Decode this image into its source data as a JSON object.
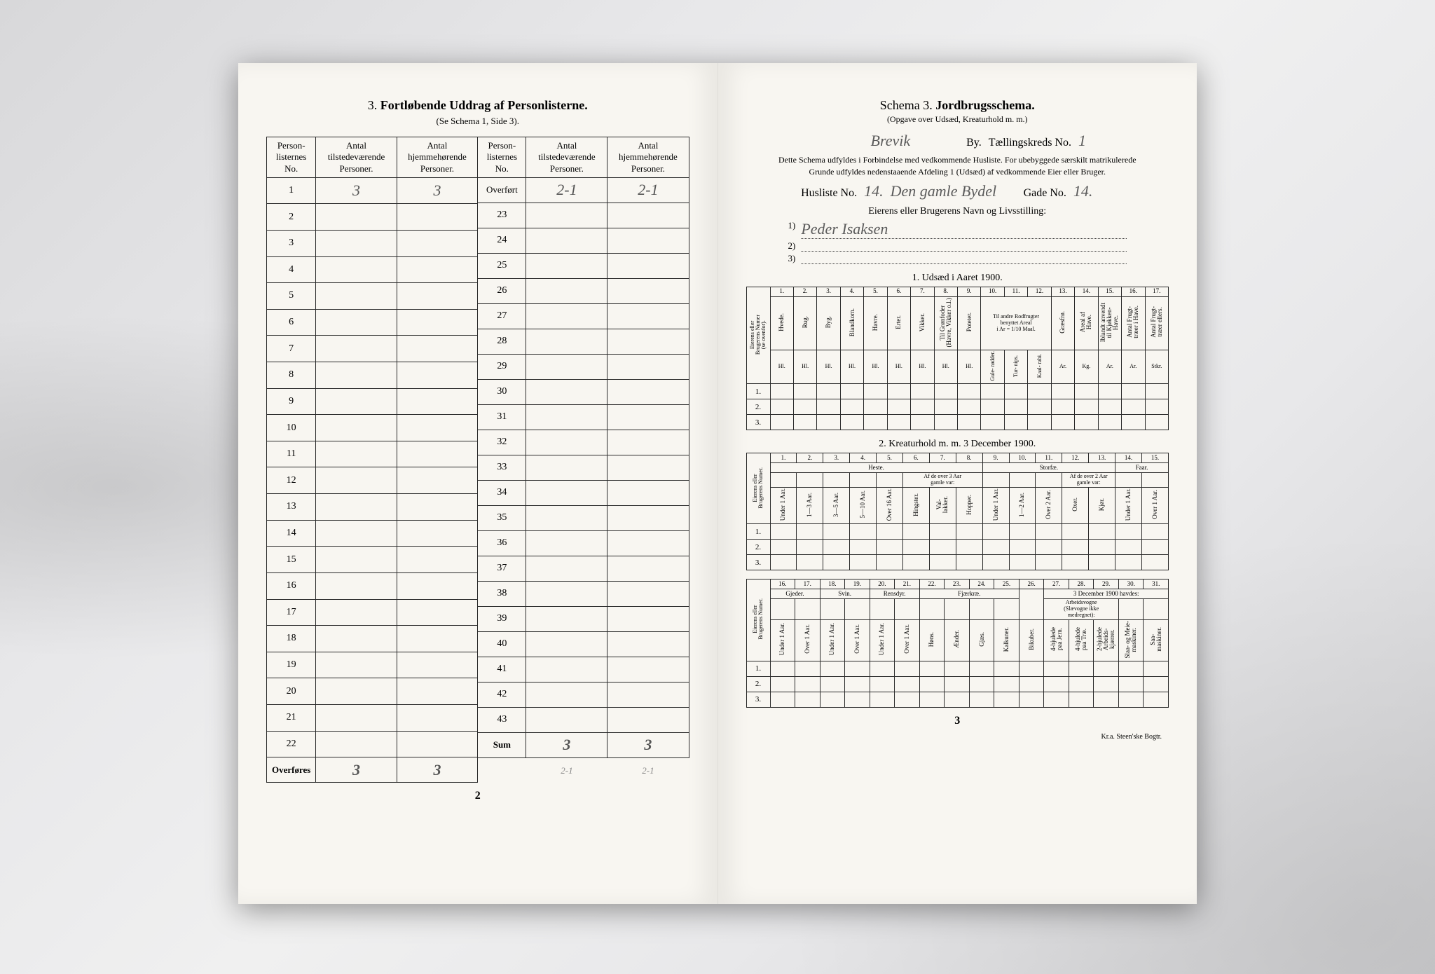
{
  "colors": {
    "paper": "#f8f6f1",
    "ink": "#2a2a2a",
    "handwriting": "#5b5b5b",
    "background_dark": "#d0d0d2",
    "background_light": "#f0f0f0"
  },
  "left": {
    "title_num": "3.",
    "title": "Fortløbende Uddrag af Personlisterne.",
    "subtitle": "(Se Schema 1, Side 3).",
    "headers": {
      "no": "Person-\nlisternes\nNo.",
      "present": "Antal\ntilstedeværende\nPersoner.",
      "resident": "Antal\nhjemmehørende\nPersoner."
    },
    "tableA_rows": [
      1,
      2,
      3,
      4,
      5,
      6,
      7,
      8,
      9,
      10,
      11,
      12,
      13,
      14,
      15,
      16,
      17,
      18,
      19,
      20,
      21,
      22
    ],
    "tableA_vals": {
      "1": {
        "present": "3",
        "resident": "3"
      }
    },
    "tableA_sum_label": "Overføres",
    "tableA_sum": {
      "present": "3",
      "resident": "3"
    },
    "tableB_top_label": "Overført",
    "tableB_top": {
      "present": "2-1",
      "resident": "2-1"
    },
    "tableB_rows": [
      23,
      24,
      25,
      26,
      27,
      28,
      29,
      30,
      31,
      32,
      33,
      34,
      35,
      36,
      37,
      38,
      39,
      40,
      41,
      42,
      43
    ],
    "tableB_sum_label": "Sum",
    "tableB_sum": {
      "present": "3",
      "resident": "3"
    },
    "tableB_below": {
      "present": "2-1",
      "resident": "2-1"
    },
    "page_num": "2"
  },
  "right": {
    "title_pre": "Schema 3.",
    "title": "Jordbrugsschema.",
    "subtitle": "(Opgave over Udsæd, Kreaturhold m. m.)",
    "town_hand": "Brevik",
    "town_label": "By.",
    "district_label": "Tællingskreds No.",
    "district_no": "1",
    "intro": "Dette Schema udfyldes i Forbindelse med vedkommende Husliste. For ubebyggede særskilt matrikulerede Grunde udfyldes nedenstaaende Afdeling 1 (Udsæd) af vedkommende Eier eller Bruger.",
    "husliste_label": "Husliste No.",
    "husliste_no": "14.",
    "street_hand": "Den gamle Bydel",
    "gade_label": "Gade No.",
    "gade_no": "14.",
    "owner_title": "Eierens eller Brugerens Navn og Livsstilling:",
    "owner_1": "Peder Isaksen",
    "owner_2": "",
    "owner_3": "",
    "sec1": {
      "title": "1. Udsæd i Aaret 1900.",
      "firstcol": "Eierens eller\nBrugerens Numer\n(se ovenfor).",
      "col_nums": [
        "1.",
        "2.",
        "3.",
        "4.",
        "5.",
        "6.",
        "7.",
        "8.",
        "9.",
        "10.",
        "11.",
        "12.",
        "13.",
        "14.",
        "15.",
        "16.",
        "17."
      ],
      "col_labels": [
        "Hvede.",
        "Rug.",
        "Byg.",
        "Blandkorn.",
        "Havre.",
        "Erter.",
        "Vikker.",
        "Til Grønfoder\n(Havre, Vikker o.l.)",
        "Poteter.",
        "Gule-\nrødder.",
        "Tur-\nnips.",
        "Kaal-\nrabi.",
        "Græsfrø.",
        "Areal af\nHave.",
        "Iblandt anvendt\ntil Kjøkken-\nHave.",
        "Antal Frugt-\ntræer i Have.",
        "Antal Frugt-\ntræer ellers."
      ],
      "group8": "Til andre Rodfrugter\nbenyttet Areal\ni Ar = 1/10 Maal.",
      "units": [
        "Hl.",
        "Hl.",
        "Hl.",
        "Hl.",
        "Hl.",
        "Hl.",
        "Hl.",
        "Hl.",
        "Hl.",
        "Ar.",
        "Ar.",
        "Ar.",
        "Ar.",
        "Kg.",
        "Ar.",
        "Ar.",
        "Stkr."
      ],
      "row_nums": [
        "1.",
        "2.",
        "3."
      ]
    },
    "sec2": {
      "title": "2. Kreaturhold m. m. 3 December 1900.",
      "firstcol": "Eierens eller\nBrugerens Numer.",
      "col_nums": [
        "1.",
        "2.",
        "3.",
        "4.",
        "5.",
        "6.",
        "7.",
        "8.",
        "9.",
        "10.",
        "11.",
        "12.",
        "13.",
        "14.",
        "15."
      ],
      "group_heste": "Heste.",
      "group_storfe": "Storfæ.",
      "group_faar": "Faar.",
      "sub_over3": "Af de over 3 Aar\ngamle var:",
      "sub_over2": "Af de over 2 Aar\ngamle var:",
      "col_labels": [
        "Under 1 Aar.",
        "1—3 Aar.",
        "3—5 Aar.",
        "5—10 Aar.",
        "Over 16 Aar.",
        "Hingster.",
        "Val-\nlakker.",
        "Hopper.",
        "Under 1 Aar.",
        "1—2 Aar.",
        "Over 2 Aar.",
        "Oxer.",
        "Kjør.",
        "Under 1 Aar.",
        "Over 1 Aar."
      ],
      "row_nums": [
        "1.",
        "2.",
        "3."
      ]
    },
    "sec3": {
      "firstcol": "Eierens eller\nBrugerens Numer.",
      "col_nums": [
        "16.",
        "17.",
        "18.",
        "19.",
        "20.",
        "21.",
        "22.",
        "23.",
        "24.",
        "25.",
        "26.",
        "27.",
        "28.",
        "29.",
        "30.",
        "31."
      ],
      "group_gjeder": "Gjeder.",
      "group_svin": "Svin.",
      "group_rensdyr": "Rensdyr.",
      "group_fjerkre": "Fjærkræ.",
      "group_date": "3 December 1900 havdes:",
      "sub_arbeid": "Arbeidsvogne\n(Slævogne ikke\nmedregnet):",
      "col_labels": [
        "Under 1 Aar.",
        "Over 1 Aar.",
        "Under 1 Aar.",
        "Over 1 Aar.",
        "Under 1 Aar.",
        "Over 1 Aar.",
        "Høns.",
        "Ænder.",
        "Gjæs.",
        "Kalkuner.",
        "Bikuber.",
        "4-hjulede\npaa Jern.",
        "4-hjulede\npaa Træ.",
        "2-hjulede\nArbeids-\nkjærrer.",
        "Slaa- og Meie-\nmaskiner.",
        "Saa-\nmaskiner."
      ],
      "row_nums": [
        "1.",
        "2.",
        "3."
      ]
    },
    "page_num": "3",
    "imprint": "Kr.a. Steen'ske Bogtr."
  }
}
